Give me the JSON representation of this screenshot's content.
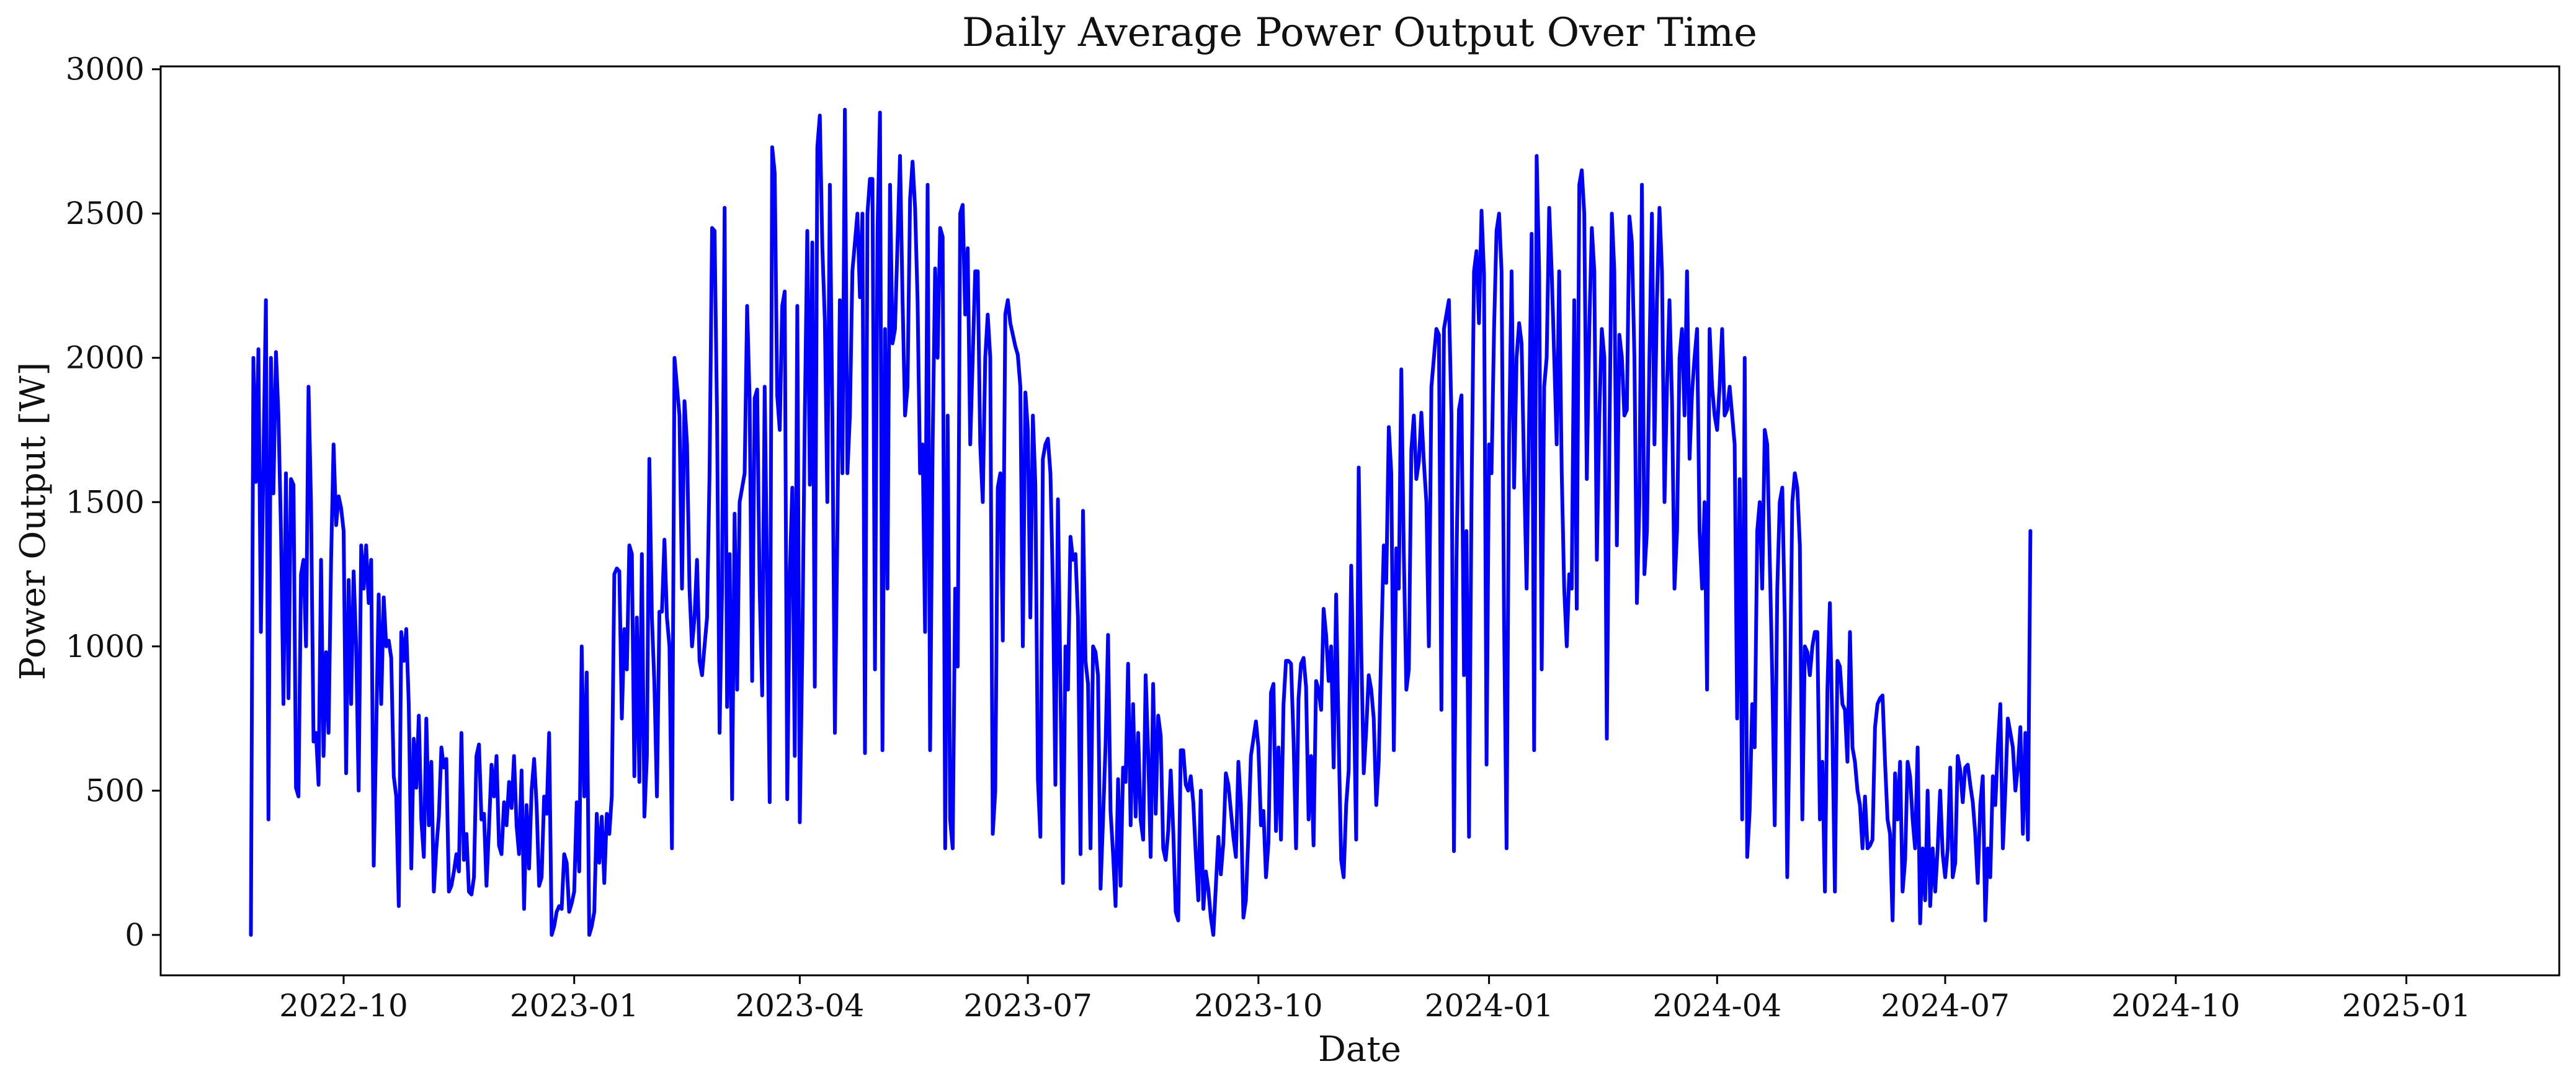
{
  "chart_data": {
    "type": "line",
    "title": "Daily Average Power Output Over Time",
    "xlabel": "Date",
    "ylabel": "Power Output [W]",
    "x_start": "2022-08-25",
    "x_end": "2025-01-27",
    "xlim": [
      "2022-07-20",
      "2025-03-03"
    ],
    "ylim": [
      -140,
      3010
    ],
    "x_ticks": [
      "2022-10",
      "2023-01",
      "2023-04",
      "2023-07",
      "2023-10",
      "2024-01",
      "2024-04",
      "2024-07",
      "2024-10",
      "2025-01"
    ],
    "y_ticks": [
      0,
      500,
      1000,
      1500,
      2000,
      2500,
      3000
    ],
    "grid": false,
    "series": [
      {
        "color": "#0000ff",
        "values": [
          0,
          2000,
          1570,
          2030,
          1050,
          1650,
          2200,
          400,
          2000,
          1530,
          2020,
          1800,
          1400,
          800,
          1600,
          820,
          1580,
          1560,
          510,
          480,
          1250,
          1300,
          1000,
          1900,
          1500,
          670,
          700,
          520,
          1300,
          620,
          980,
          700,
          1300,
          1700,
          1420,
          1520,
          1480,
          1400,
          560,
          1230,
          800,
          1260,
          1000,
          500,
          1350,
          1200,
          1350,
          1150,
          1300,
          240,
          700,
          1180,
          800,
          1170,
          1000,
          1020,
          960,
          550,
          480,
          100,
          1050,
          950,
          1060,
          800,
          230,
          680,
          510,
          760,
          400,
          270,
          750,
          380,
          600,
          150,
          300,
          410,
          650,
          580,
          610,
          150,
          170,
          220,
          280,
          220,
          700,
          260,
          350,
          150,
          140,
          200,
          620,
          660,
          400,
          420,
          170,
          370,
          590,
          480,
          620,
          310,
          280,
          460,
          380,
          530,
          440,
          620,
          380,
          280,
          570,
          90,
          450,
          230,
          500,
          610,
          450,
          170,
          200,
          480,
          420,
          700,
          0,
          30,
          80,
          100,
          90,
          280,
          250,
          80,
          110,
          150,
          460,
          220,
          1000,
          480,
          910,
          0,
          30,
          80,
          420,
          250,
          410,
          180,
          420,
          350,
          480,
          1250,
          1270,
          1260,
          750,
          1060,
          920,
          1350,
          1320,
          550,
          1100,
          530,
          1320,
          410,
          620,
          1650,
          1100,
          870,
          480,
          1120,
          1120,
          1370,
          1100,
          1000,
          300,
          2000,
          1900,
          1800,
          1200,
          1850,
          1700,
          1200,
          1000,
          1100,
          1300,
          950,
          900,
          1000,
          1100,
          1600,
          2450,
          2440,
          1800,
          700,
          1200,
          2520,
          790,
          1320,
          470,
          1460,
          850,
          1500,
          1550,
          1600,
          2180,
          1850,
          880,
          1860,
          1890,
          1200,
          830,
          1900,
          1200,
          460,
          2730,
          2640,
          1870,
          1750,
          2180,
          2230,
          470,
          1240,
          1550,
          620,
          2180,
          390,
          980,
          1800,
          2440,
          1560,
          2400,
          860,
          2730,
          2840,
          2380,
          2130,
          1500,
          2600,
          1800,
          700,
          1400,
          2200,
          1600,
          2860,
          1600,
          1800,
          2300,
          2400,
          2500,
          2210,
          2500,
          630,
          2500,
          2620,
          2620,
          920,
          2440,
          2850,
          640,
          2100,
          1200,
          2600,
          2050,
          2100,
          2400,
          2700,
          2200,
          1800,
          1900,
          2550,
          2680,
          2520,
          2200,
          1600,
          1700,
          1050,
          2600,
          640,
          1700,
          2310,
          2000,
          2450,
          2420,
          300,
          1800,
          400,
          300,
          1200,
          930,
          2500,
          2530,
          2150,
          2380,
          1700,
          2000,
          2300,
          2300,
          1700,
          1500,
          2000,
          2150,
          2000,
          350,
          500,
          1550,
          1600,
          1020,
          2150,
          2200,
          2120,
          2080,
          2040,
          2010,
          1900,
          1000,
          1880,
          1750,
          1100,
          1800,
          1560,
          540,
          340,
          1650,
          1700,
          1720,
          1600,
          1200,
          520,
          1510,
          870,
          180,
          1000,
          850,
          1380,
          1300,
          1320,
          1100,
          280,
          1470,
          950,
          870,
          300,
          1000,
          980,
          900,
          160,
          400,
          660,
          1040,
          430,
          280,
          100,
          540,
          170,
          580,
          530,
          940,
          380,
          800,
          410,
          700,
          400,
          330,
          900,
          630,
          270,
          870,
          420,
          760,
          690,
          300,
          260,
          360,
          570,
          360,
          80,
          50,
          640,
          640,
          520,
          500,
          550,
          460,
          280,
          120,
          500,
          90,
          220,
          160,
          60,
          0,
          170,
          340,
          210,
          320,
          560,
          520,
          430,
          340,
          270,
          600,
          450,
          60,
          120,
          350,
          620,
          680,
          740,
          650,
          380,
          430,
          200,
          320,
          840,
          870,
          360,
          650,
          330,
          800,
          950,
          950,
          940,
          680,
          300,
          820,
          940,
          960,
          860,
          400,
          620,
          310,
          880,
          850,
          780,
          1130,
          1040,
          880,
          1000,
          580,
          1180,
          680,
          260,
          200,
          450,
          570,
          1280,
          850,
          330,
          1620,
          1000,
          560,
          710,
          900,
          850,
          750,
          450,
          600,
          1000,
          1350,
          1220,
          1760,
          1600,
          640,
          1340,
          1200,
          1960,
          1320,
          850,
          920,
          1680,
          1800,
          1580,
          1640,
          1810,
          1640,
          1500,
          1000,
          1900,
          2000,
          2100,
          2080,
          780,
          2100,
          2150,
          2200,
          1800,
          290,
          1300,
          1820,
          1870,
          900,
          1400,
          340,
          1500,
          2300,
          2370,
          2120,
          2510,
          2290,
          590,
          1700,
          1600,
          2100,
          2440,
          2500,
          2300,
          1100,
          300,
          1700,
          2300,
          1550,
          2000,
          2120,
          2050,
          1600,
          1200,
          1800,
          2430,
          640,
          2700,
          2300,
          920,
          1900,
          2000,
          2520,
          2300,
          2000,
          1700,
          2300,
          1600,
          1200,
          1000,
          1250,
          1200,
          2200,
          1130,
          2600,
          2650,
          2500,
          1580,
          2100,
          2450,
          2300,
          1300,
          1800,
          2100,
          2000,
          680,
          1700,
          2500,
          2300,
          1350,
          2080,
          2000,
          1800,
          1820,
          2490,
          2400,
          2000,
          1150,
          1500,
          2600,
          1250,
          1400,
          2000,
          2500,
          1700,
          2200,
          2520,
          2300,
          1500,
          1900,
          2200,
          1850,
          1200,
          1400,
          2000,
          2100,
          1800,
          2300,
          1650,
          1880,
          2000,
          2100,
          1400,
          1200,
          1500,
          850,
          2100,
          1900,
          1800,
          1750,
          1900,
          2100,
          1800,
          1820,
          1900,
          1800,
          1700,
          750,
          1580,
          400,
          2000,
          270,
          430,
          800,
          650,
          1400,
          1500,
          1200,
          1750,
          1700,
          1300,
          900,
          380,
          1200,
          1500,
          1550,
          1100,
          200,
          800,
          1500,
          1600,
          1550,
          1350,
          400,
          1000,
          980,
          900,
          1000,
          1050,
          1050,
          400,
          600,
          150,
          850,
          1150,
          700,
          150,
          950,
          930,
          800,
          780,
          600,
          1050,
          650,
          600,
          500,
          450,
          300,
          480,
          300,
          310,
          330,
          720,
          800,
          820,
          830,
          600,
          400,
          350,
          50,
          560,
          400,
          600,
          150,
          260,
          600,
          550,
          400,
          300,
          650,
          40,
          300,
          120,
          500,
          100,
          300,
          150,
          300,
          500,
          280,
          200,
          300,
          580,
          200,
          250,
          620,
          570,
          460,
          580,
          590,
          520,
          460,
          350,
          180,
          450,
          550,
          50,
          300,
          200,
          550,
          450,
          650,
          800,
          300,
          500,
          750,
          700,
          650,
          500,
          580,
          720,
          350,
          700,
          330,
          1400
        ]
      }
    ]
  }
}
